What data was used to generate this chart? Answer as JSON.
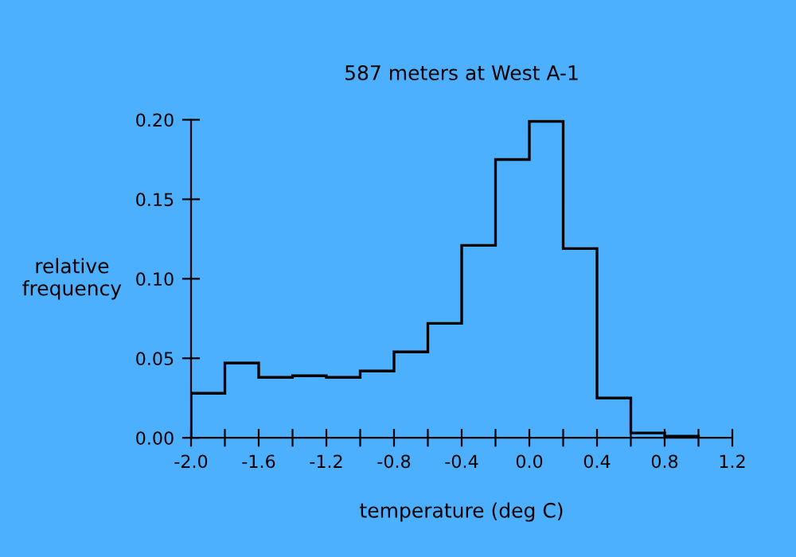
{
  "chart_data": {
    "type": "histogram",
    "title": "587 meters at West A-1",
    "xlabel": "temperature (deg C)",
    "ylabel": "relative\nfrequency",
    "bins": [
      -2.0,
      -1.8,
      -1.6,
      -1.4,
      -1.2,
      -1.0,
      -0.8,
      -0.6,
      -0.4,
      -0.2,
      0.0,
      0.2,
      0.4,
      0.6,
      0.8,
      1.0
    ],
    "values": [
      0.028,
      0.047,
      0.038,
      0.039,
      0.038,
      0.042,
      0.054,
      0.072,
      0.121,
      0.175,
      0.199,
      0.119,
      0.025,
      0.003,
      0.001
    ],
    "color": "#000000",
    "xlim": [
      -2.0,
      1.2
    ],
    "xticks": [
      {
        "value": -2.0,
        "label": "-2.0"
      },
      {
        "value": -1.8,
        "label": null
      },
      {
        "value": -1.6,
        "label": "-1.6"
      },
      {
        "value": -1.4,
        "label": null
      },
      {
        "value": -1.2,
        "label": "-1.2"
      },
      {
        "value": -1.0,
        "label": null
      },
      {
        "value": -0.8,
        "label": "-0.8"
      },
      {
        "value": -0.6,
        "label": null
      },
      {
        "value": -0.4,
        "label": "-0.4"
      },
      {
        "value": -0.2,
        "label": null
      },
      {
        "value": 0.0,
        "label": "0.0"
      },
      {
        "value": 0.2,
        "label": null
      },
      {
        "value": 0.4,
        "label": "0.4"
      },
      {
        "value": 0.6,
        "label": null
      },
      {
        "value": 0.8,
        "label": "0.8"
      },
      {
        "value": 1.0,
        "label": null
      },
      {
        "value": 1.2,
        "label": "1.2"
      }
    ],
    "ylim": [
      0,
      0.2
    ],
    "yticks": [
      {
        "value": 0,
        "label": "0.00"
      },
      {
        "value": 0.05,
        "label": "0.05"
      },
      {
        "value": 0.1,
        "label": "0.10"
      },
      {
        "value": 0.15,
        "label": "0.15"
      },
      {
        "value": 0.2,
        "label": "0.20"
      }
    ],
    "grid": false
  }
}
